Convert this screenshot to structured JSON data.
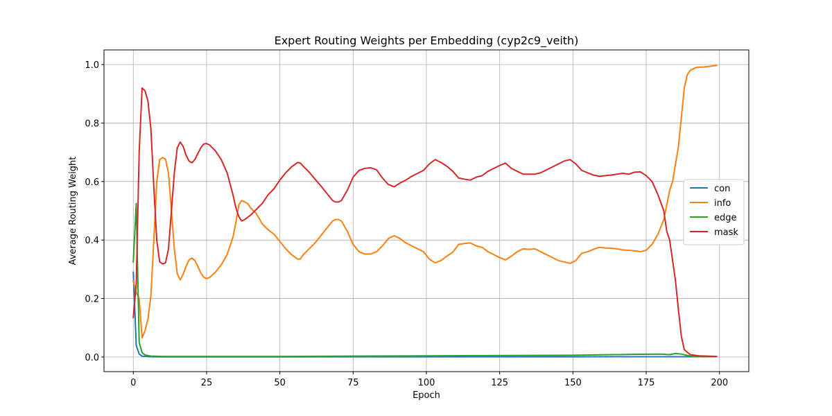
{
  "chart_data": {
    "type": "line",
    "title": "Expert Routing Weights per Embedding (cyp2c9_veith)",
    "xlabel": "Epoch",
    "ylabel": "Average Routing Weight",
    "xlim": [
      -10,
      210
    ],
    "ylim": [
      -0.05,
      1.05
    ],
    "xticks": [
      0,
      25,
      50,
      75,
      100,
      125,
      150,
      175,
      200
    ],
    "yticks": [
      0.0,
      0.2,
      0.4,
      0.6,
      0.8,
      1.0
    ],
    "xtick_labels": [
      "0",
      "25",
      "50",
      "75",
      "100",
      "125",
      "150",
      "175",
      "200"
    ],
    "ytick_labels": [
      "0.0",
      "0.2",
      "0.4",
      "0.6",
      "0.8",
      "1.0"
    ],
    "grid": true,
    "legend_position": "right",
    "series": [
      {
        "name": "con",
        "color": "#1f77b4",
        "points": [
          [
            0,
            0.29
          ],
          [
            1,
            0.04
          ],
          [
            2,
            0.01
          ],
          [
            3,
            0.003
          ],
          [
            5,
            0.001
          ],
          [
            10,
            0.0005
          ],
          [
            50,
            0.0005
          ],
          [
            100,
            0.0008
          ],
          [
            150,
            0.0008
          ],
          [
            180,
            0.001
          ],
          [
            190,
            0.001
          ],
          [
            199,
            0.001
          ]
        ]
      },
      {
        "name": "info",
        "color": "#ff7f0e",
        "points": [
          [
            0,
            0.26
          ],
          [
            1,
            0.22
          ],
          [
            2,
            0.2
          ],
          [
            3,
            0.065
          ],
          [
            4,
            0.09
          ],
          [
            5,
            0.13
          ],
          [
            6,
            0.21
          ],
          [
            7,
            0.4
          ],
          [
            8,
            0.6
          ],
          [
            9,
            0.675
          ],
          [
            10,
            0.682
          ],
          [
            11,
            0.676
          ],
          [
            12,
            0.63
          ],
          [
            13,
            0.5
          ],
          [
            14,
            0.37
          ],
          [
            15,
            0.285
          ],
          [
            16,
            0.264
          ],
          [
            17,
            0.283
          ],
          [
            18,
            0.31
          ],
          [
            19,
            0.332
          ],
          [
            20,
            0.338
          ],
          [
            21,
            0.33
          ],
          [
            22,
            0.31
          ],
          [
            23,
            0.288
          ],
          [
            24,
            0.273
          ],
          [
            25,
            0.268
          ],
          [
            26,
            0.272
          ],
          [
            28,
            0.29
          ],
          [
            30,
            0.315
          ],
          [
            32,
            0.35
          ],
          [
            34,
            0.41
          ],
          [
            35,
            0.46
          ],
          [
            36,
            0.52
          ],
          [
            37,
            0.535
          ],
          [
            38,
            0.53
          ],
          [
            39,
            0.525
          ],
          [
            40,
            0.51
          ],
          [
            42,
            0.49
          ],
          [
            44,
            0.455
          ],
          [
            46,
            0.435
          ],
          [
            48,
            0.42
          ],
          [
            50,
            0.395
          ],
          [
            52,
            0.37
          ],
          [
            54,
            0.35
          ],
          [
            56,
            0.335
          ],
          [
            57,
            0.335
          ],
          [
            58,
            0.35
          ],
          [
            60,
            0.37
          ],
          [
            62,
            0.39
          ],
          [
            64,
            0.415
          ],
          [
            66,
            0.44
          ],
          [
            68,
            0.465
          ],
          [
            69,
            0.47
          ],
          [
            70,
            0.47
          ],
          [
            71,
            0.465
          ],
          [
            73,
            0.43
          ],
          [
            75,
            0.385
          ],
          [
            77,
            0.36
          ],
          [
            79,
            0.352
          ],
          [
            81,
            0.352
          ],
          [
            83,
            0.36
          ],
          [
            85,
            0.38
          ],
          [
            87,
            0.405
          ],
          [
            89,
            0.415
          ],
          [
            91,
            0.405
          ],
          [
            93,
            0.39
          ],
          [
            95,
            0.38
          ],
          [
            97,
            0.37
          ],
          [
            99,
            0.36
          ],
          [
            101,
            0.335
          ],
          [
            103,
            0.322
          ],
          [
            105,
            0.33
          ],
          [
            107,
            0.345
          ],
          [
            109,
            0.358
          ],
          [
            111,
            0.385
          ],
          [
            113,
            0.388
          ],
          [
            115,
            0.39
          ],
          [
            117,
            0.38
          ],
          [
            119,
            0.375
          ],
          [
            121,
            0.36
          ],
          [
            123,
            0.35
          ],
          [
            125,
            0.34
          ],
          [
            127,
            0.332
          ],
          [
            129,
            0.345
          ],
          [
            131,
            0.36
          ],
          [
            133,
            0.37
          ],
          [
            135,
            0.368
          ],
          [
            137,
            0.37
          ],
          [
            139,
            0.36
          ],
          [
            141,
            0.35
          ],
          [
            143,
            0.34
          ],
          [
            145,
            0.33
          ],
          [
            147,
            0.325
          ],
          [
            149,
            0.32
          ],
          [
            151,
            0.33
          ],
          [
            153,
            0.355
          ],
          [
            155,
            0.36
          ],
          [
            157,
            0.368
          ],
          [
            159,
            0.375
          ],
          [
            161,
            0.373
          ],
          [
            163,
            0.372
          ],
          [
            165,
            0.37
          ],
          [
            167,
            0.366
          ],
          [
            169,
            0.365
          ],
          [
            171,
            0.363
          ],
          [
            173,
            0.36
          ],
          [
            175,
            0.365
          ],
          [
            177,
            0.385
          ],
          [
            179,
            0.42
          ],
          [
            181,
            0.47
          ],
          [
            183,
            0.57
          ],
          [
            184,
            0.6
          ],
          [
            185,
            0.66
          ],
          [
            186,
            0.72
          ],
          [
            187,
            0.82
          ],
          [
            188,
            0.92
          ],
          [
            189,
            0.965
          ],
          [
            190,
            0.98
          ],
          [
            192,
            0.99
          ],
          [
            195,
            0.992
          ],
          [
            199,
            0.997
          ]
        ]
      },
      {
        "name": "edge",
        "color": "#2ca02c",
        "points": [
          [
            0,
            0.325
          ],
          [
            1,
            0.525
          ],
          [
            2,
            0.05
          ],
          [
            3,
            0.015
          ],
          [
            4,
            0.007
          ],
          [
            6,
            0.003
          ],
          [
            10,
            0.002
          ],
          [
            50,
            0.002
          ],
          [
            100,
            0.004
          ],
          [
            150,
            0.006
          ],
          [
            170,
            0.009
          ],
          [
            180,
            0.01
          ],
          [
            183,
            0.008
          ],
          [
            185,
            0.012
          ],
          [
            187,
            0.01
          ],
          [
            190,
            0.003
          ],
          [
            195,
            0.001
          ],
          [
            199,
            0.001
          ]
        ]
      },
      {
        "name": "mask",
        "color": "#d62728",
        "points": [
          [
            0,
            0.135
          ],
          [
            1,
            0.25
          ],
          [
            2,
            0.7
          ],
          [
            3,
            0.92
          ],
          [
            4,
            0.91
          ],
          [
            5,
            0.875
          ],
          [
            6,
            0.78
          ],
          [
            7,
            0.58
          ],
          [
            8,
            0.4
          ],
          [
            9,
            0.325
          ],
          [
            10,
            0.318
          ],
          [
            11,
            0.322
          ],
          [
            12,
            0.37
          ],
          [
            13,
            0.5
          ],
          [
            14,
            0.63
          ],
          [
            15,
            0.715
          ],
          [
            16,
            0.735
          ],
          [
            17,
            0.72
          ],
          [
            18,
            0.69
          ],
          [
            19,
            0.67
          ],
          [
            20,
            0.664
          ],
          [
            21,
            0.675
          ],
          [
            22,
            0.695
          ],
          [
            23,
            0.715
          ],
          [
            24,
            0.728
          ],
          [
            25,
            0.73
          ],
          [
            26,
            0.725
          ],
          [
            28,
            0.705
          ],
          [
            30,
            0.675
          ],
          [
            32,
            0.63
          ],
          [
            34,
            0.555
          ],
          [
            35,
            0.51
          ],
          [
            36,
            0.48
          ],
          [
            37,
            0.465
          ],
          [
            38,
            0.47
          ],
          [
            40,
            0.485
          ],
          [
            42,
            0.505
          ],
          [
            44,
            0.525
          ],
          [
            46,
            0.555
          ],
          [
            48,
            0.575
          ],
          [
            50,
            0.605
          ],
          [
            52,
            0.63
          ],
          [
            54,
            0.65
          ],
          [
            56,
            0.665
          ],
          [
            57,
            0.663
          ],
          [
            58,
            0.652
          ],
          [
            60,
            0.632
          ],
          [
            62,
            0.608
          ],
          [
            64,
            0.585
          ],
          [
            66,
            0.56
          ],
          [
            68,
            0.535
          ],
          [
            69,
            0.53
          ],
          [
            70,
            0.53
          ],
          [
            71,
            0.535
          ],
          [
            73,
            0.57
          ],
          [
            75,
            0.615
          ],
          [
            77,
            0.638
          ],
          [
            79,
            0.645
          ],
          [
            81,
            0.647
          ],
          [
            83,
            0.64
          ],
          [
            85,
            0.612
          ],
          [
            87,
            0.59
          ],
          [
            89,
            0.582
          ],
          [
            91,
            0.595
          ],
          [
            93,
            0.605
          ],
          [
            95,
            0.618
          ],
          [
            97,
            0.628
          ],
          [
            99,
            0.638
          ],
          [
            101,
            0.66
          ],
          [
            103,
            0.675
          ],
          [
            105,
            0.665
          ],
          [
            107,
            0.652
          ],
          [
            109,
            0.635
          ],
          [
            111,
            0.612
          ],
          [
            113,
            0.608
          ],
          [
            115,
            0.605
          ],
          [
            117,
            0.615
          ],
          [
            119,
            0.62
          ],
          [
            121,
            0.635
          ],
          [
            123,
            0.645
          ],
          [
            125,
            0.655
          ],
          [
            127,
            0.663
          ],
          [
            129,
            0.645
          ],
          [
            131,
            0.635
          ],
          [
            133,
            0.625
          ],
          [
            135,
            0.625
          ],
          [
            137,
            0.625
          ],
          [
            139,
            0.63
          ],
          [
            141,
            0.64
          ],
          [
            143,
            0.65
          ],
          [
            145,
            0.66
          ],
          [
            147,
            0.67
          ],
          [
            149,
            0.675
          ],
          [
            151,
            0.66
          ],
          [
            153,
            0.638
          ],
          [
            155,
            0.63
          ],
          [
            157,
            0.622
          ],
          [
            159,
            0.618
          ],
          [
            161,
            0.62
          ],
          [
            163,
            0.622
          ],
          [
            165,
            0.625
          ],
          [
            167,
            0.628
          ],
          [
            169,
            0.625
          ],
          [
            171,
            0.632
          ],
          [
            173,
            0.633
          ],
          [
            175,
            0.62
          ],
          [
            177,
            0.6
          ],
          [
            179,
            0.555
          ],
          [
            181,
            0.5
          ],
          [
            182,
            0.43
          ],
          [
            183,
            0.4
          ],
          [
            184,
            0.33
          ],
          [
            185,
            0.26
          ],
          [
            186,
            0.16
          ],
          [
            187,
            0.07
          ],
          [
            188,
            0.025
          ],
          [
            190,
            0.008
          ],
          [
            193,
            0.004
          ],
          [
            199,
            0.002
          ]
        ]
      }
    ]
  }
}
